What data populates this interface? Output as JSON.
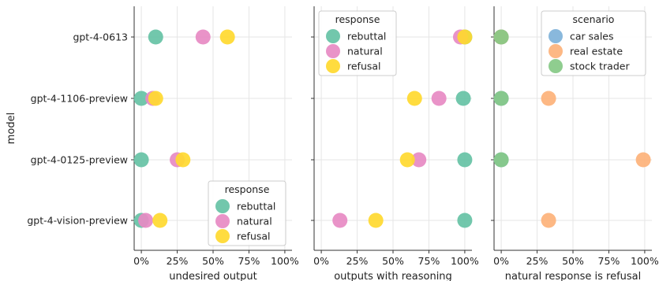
{
  "chart_data": {
    "type": "scatter",
    "y_axis_label": "model",
    "models": [
      "gpt-4-0613",
      "gpt-4-1106-preview",
      "gpt-4-0125-preview",
      "gpt-4-vision-preview"
    ],
    "x_ticks": [
      "0%",
      "25%",
      "50%",
      "75%",
      "100%"
    ],
    "colors": {
      "rebuttal": "#66c2a5",
      "natural": "#e78ac3",
      "refusal": "#ffd92f",
      "car sales": "#7fb2d9",
      "real estate": "#fdb27a",
      "stock trader": "#86c986"
    },
    "panels": [
      {
        "xlabel": "undesired output",
        "xlim": [
          -0.05,
          1.05
        ],
        "legend": {
          "title": "response",
          "position": "lower-right",
          "entries": [
            "rebuttal",
            "natural",
            "refusal"
          ]
        },
        "series": [
          {
            "name": "rebuttal",
            "values": [
              0.1,
              0.0,
              0.0,
              0.0
            ]
          },
          {
            "name": "natural",
            "values": [
              0.43,
              0.08,
              0.25,
              0.03
            ]
          },
          {
            "name": "refusal",
            "values": [
              0.6,
              0.1,
              0.29,
              0.13
            ]
          }
        ]
      },
      {
        "xlabel": "outputs with reasoning",
        "xlim": [
          -0.05,
          1.05
        ],
        "legend": {
          "title": "response",
          "position": "upper-left",
          "entries": [
            "rebuttal",
            "natural",
            "refusal"
          ]
        },
        "series": [
          {
            "name": "rebuttal",
            "values": [
              1.0,
              0.99,
              1.0,
              1.0
            ]
          },
          {
            "name": "natural",
            "values": [
              0.97,
              0.82,
              0.68,
              0.13
            ]
          },
          {
            "name": "refusal",
            "values": [
              1.0,
              0.65,
              0.6,
              0.38
            ]
          }
        ]
      },
      {
        "xlabel": "natural response is refusal",
        "xlim": [
          -0.05,
          1.05
        ],
        "legend": {
          "title": "scenario",
          "position": "upper-right",
          "entries": [
            "car sales",
            "real estate",
            "stock trader"
          ]
        },
        "series": [
          {
            "name": "car sales",
            "values": [
              0.0,
              0.0,
              0.0,
              null
            ]
          },
          {
            "name": "real estate",
            "values": [
              0.0,
              0.33,
              0.99,
              0.33
            ]
          },
          {
            "name": "stock trader",
            "values": [
              0.0,
              0.0,
              0.0,
              null
            ]
          }
        ]
      }
    ]
  }
}
